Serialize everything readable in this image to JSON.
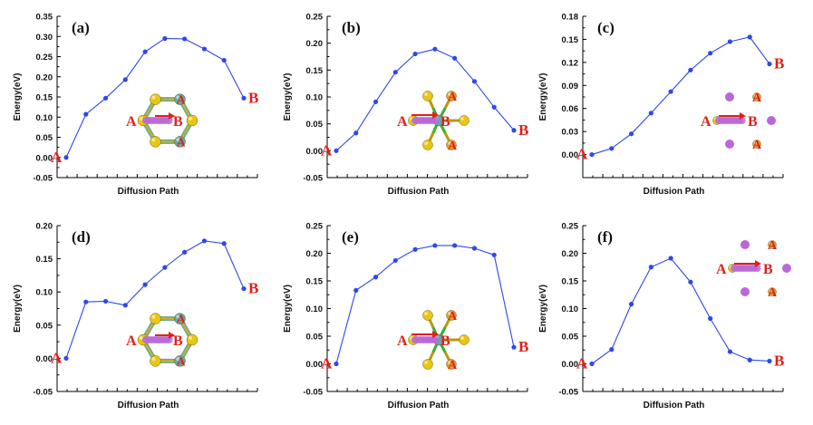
{
  "figure": {
    "colors": {
      "line": "#2f48e8",
      "endpoint_label": "#e0201b",
      "axis": "#000000",
      "sulfur": "#e8c611",
      "metal": "#5ea9a8",
      "ion": "#b868d8",
      "bond": "#31b53c"
    }
  },
  "chart_data": [
    {
      "type": "line",
      "panel_label": "(a)",
      "ylabel": "Energy(eV)",
      "xlabel": "Diffusion Path",
      "ylim": [
        -0.05,
        0.35
      ],
      "yticks": [
        "-0.05",
        "0.00",
        "0.05",
        "0.10",
        "0.15",
        "0.20",
        "0.25",
        "0.30",
        "0.35"
      ],
      "x": [
        1,
        2,
        3,
        4,
        5,
        6,
        7,
        8,
        9,
        10
      ],
      "y": [
        0.0,
        0.107,
        0.147,
        0.193,
        0.262,
        0.295,
        0.294,
        0.269,
        0.241,
        0.147
      ],
      "start_label": "A",
      "end_label": "B",
      "inset": "ring",
      "inset_labels": [
        "A",
        "B",
        "A",
        "A"
      ]
    },
    {
      "type": "line",
      "panel_label": "(b)",
      "ylabel": "Energy(eV)",
      "xlabel": "Diffusion Path",
      "ylim": [
        -0.05,
        0.25
      ],
      "yticks": [
        "-0.05",
        "0.00",
        "0.05",
        "0.10",
        "0.15",
        "0.20",
        "0.25"
      ],
      "x": [
        1,
        2,
        3,
        4,
        5,
        6,
        7,
        8,
        9,
        10
      ],
      "y": [
        0.0,
        0.033,
        0.091,
        0.146,
        0.18,
        0.189,
        0.172,
        0.129,
        0.081,
        0.038
      ],
      "start_label": "A",
      "end_label": "B",
      "inset": "star",
      "inset_labels": [
        "A",
        "B",
        "A",
        "A"
      ]
    },
    {
      "type": "line",
      "panel_label": "(c)",
      "ylabel": "Energy(eV)",
      "xlabel": "Diffusion Path",
      "ylim": [
        -0.03,
        0.18
      ],
      "yticks": [
        "0.00",
        "0.03",
        "0.06",
        "0.09",
        "0.12",
        "0.15",
        "0.18"
      ],
      "x": [
        1,
        2,
        3,
        4,
        5,
        6,
        7,
        8,
        9
      ],
      "y": [
        0.0,
        0.008,
        0.027,
        0.054,
        0.082,
        0.11,
        0.132,
        0.147,
        0.153
      ],
      "end_x": 10,
      "end_y": 0.118,
      "start_label": "A",
      "end_label": "B",
      "inset": "grid",
      "inset_labels": [
        "A",
        "B",
        "A",
        "A"
      ]
    },
    {
      "type": "line",
      "panel_label": "(d)",
      "ylabel": "Energy(eV)",
      "xlabel": "Diffusion Path",
      "ylim": [
        -0.05,
        0.2
      ],
      "yticks": [
        "-0.05",
        "0.00",
        "0.05",
        "0.10",
        "0.15",
        "0.20"
      ],
      "x": [
        1,
        2,
        3,
        4,
        5,
        6,
        7,
        8,
        9,
        10
      ],
      "y": [
        0.0,
        0.085,
        0.086,
        0.08,
        0.111,
        0.137,
        0.16,
        0.177,
        0.173,
        0.105
      ],
      "start_label": "A",
      "end_label": "B",
      "inset": "ring",
      "inset_labels": [
        "A",
        "B",
        "A",
        "A"
      ]
    },
    {
      "type": "line",
      "panel_label": "(e)",
      "ylabel": "Energy(eV)",
      "xlabel": "Diffusion Path",
      "ylim": [
        -0.05,
        0.25
      ],
      "yticks": [
        "-0.05",
        "0.00",
        "0.05",
        "0.10",
        "0.15",
        "0.20",
        "0.25"
      ],
      "x": [
        1,
        2,
        3,
        4,
        5,
        6,
        7,
        8,
        9,
        10
      ],
      "y": [
        0.0,
        0.133,
        0.157,
        0.187,
        0.207,
        0.214,
        0.214,
        0.209,
        0.197,
        0.03
      ],
      "start_label": "A",
      "end_label": "B",
      "inset": "star",
      "inset_labels": [
        "A",
        "B",
        "A",
        "A"
      ]
    },
    {
      "type": "line",
      "panel_label": "(f)",
      "ylabel": "Energy(eV)",
      "xlabel": "Diffusion Path",
      "ylim": [
        -0.05,
        0.25
      ],
      "yticks": [
        "-0.05",
        "0.00",
        "0.05",
        "0.10",
        "0.15",
        "0.20",
        "0.25"
      ],
      "x": [
        1,
        2,
        3,
        4,
        5,
        6,
        7,
        8,
        9,
        10
      ],
      "y": [
        0.0,
        0.026,
        0.108,
        0.175,
        0.191,
        0.148,
        0.082,
        0.022,
        0.007,
        0.005
      ],
      "start_label": "A",
      "end_label": "B",
      "inset": "grid",
      "inset_labels": [
        "A",
        "B",
        "A",
        "A"
      ]
    }
  ]
}
